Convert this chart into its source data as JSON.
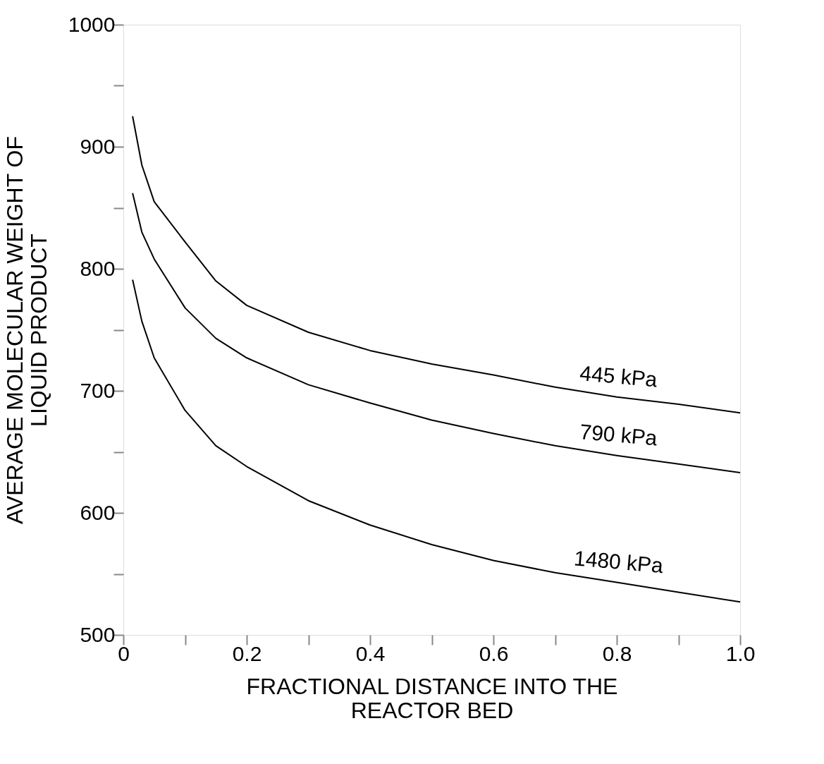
{
  "chart_data": {
    "type": "line",
    "xlabel": "FRACTIONAL DISTANCE INTO THE\nREACTOR BED",
    "ylabel": "AVERAGE MOLECULAR WEIGHT OF\nLIQUID PRODUCT",
    "xlim": [
      0,
      1
    ],
    "ylim": [
      500,
      1000
    ],
    "xticks": [
      0,
      {
        "value": 0.1,
        "label": null
      },
      0.2,
      {
        "value": 0.3,
        "label": null
      },
      0.4,
      {
        "value": 0.5,
        "label": null
      },
      0.6,
      {
        "value": 0.7,
        "label": null
      },
      0.8,
      {
        "value": 0.9,
        "label": null
      },
      {
        "value": 1,
        "label": "1.0"
      }
    ],
    "yticks": [
      500,
      {
        "value": 550,
        "label": null
      },
      600,
      {
        "value": 650,
        "label": null
      },
      700,
      {
        "value": 750,
        "label": null
      },
      800,
      {
        "value": 850,
        "label": null
      },
      900,
      {
        "value": 950,
        "label": null
      },
      1000
    ],
    "grid": false,
    "legend": false,
    "marker": "none",
    "line_style": "solid",
    "x": [
      0.015,
      0.03,
      0.05,
      0.1,
      0.15,
      0.2,
      0.3,
      0.4,
      0.5,
      0.6,
      0.7,
      0.8,
      0.9,
      1.0
    ],
    "series": [
      {
        "name": "445 kPa",
        "color": "#000000",
        "values": [
          925,
          885,
          855,
          822,
          790,
          770,
          748,
          733,
          722,
          713,
          703,
          695,
          689,
          682
        ]
      },
      {
        "name": "790 kPa",
        "color": "#000000",
        "values": [
          862,
          830,
          808,
          768,
          743,
          727,
          705,
          690,
          676,
          665,
          655,
          647,
          640,
          633
        ]
      },
      {
        "name": "1480 kPa",
        "color": "#000000",
        "values": [
          791,
          757,
          727,
          684,
          655,
          638,
          610,
          590,
          574,
          561,
          551,
          543,
          535,
          527
        ]
      }
    ]
  }
}
